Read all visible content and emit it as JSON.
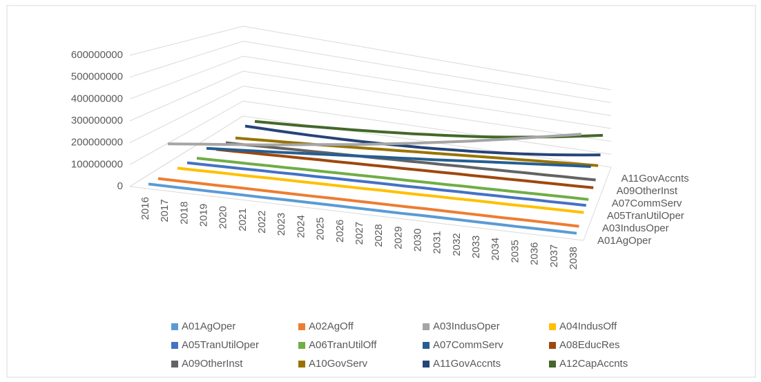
{
  "chart_data": {
    "type": "line3d",
    "categories": [
      "2016",
      "2017",
      "2018",
      "2019",
      "2020",
      "2021",
      "2022",
      "2023",
      "2024",
      "2025",
      "2026",
      "2027",
      "2028",
      "2029",
      "2030",
      "2031",
      "2032",
      "2033",
      "2034",
      "2035",
      "2036",
      "2037",
      "2038"
    ],
    "ylim": [
      0,
      600000000
    ],
    "yticks": [
      0,
      100000000,
      200000000,
      300000000,
      400000000,
      500000000,
      600000000
    ],
    "grid": true,
    "legend": "bottom",
    "series": [
      {
        "name": "A01AgOper",
        "color": "#5b9bd5",
        "values": [
          5000000,
          5000000,
          5000000,
          5000000,
          5000000,
          5000000,
          5000000,
          6000000,
          6000000,
          6000000,
          6000000,
          6000000,
          6000000,
          6000000,
          7000000,
          7000000,
          7000000,
          7000000,
          7000000,
          7000000,
          8000000,
          8000000,
          8000000
        ]
      },
      {
        "name": "A02AgOff",
        "color": "#ed7d31",
        "values": [
          8000000,
          8000000,
          8000000,
          8000000,
          9000000,
          9000000,
          9000000,
          9000000,
          9000000,
          10000000,
          10000000,
          10000000,
          10000000,
          10000000,
          11000000,
          11000000,
          11000000,
          11000000,
          11000000,
          12000000,
          12000000,
          12000000,
          12000000
        ]
      },
      {
        "name": "A03IndusOper",
        "color": "#a5a5a5",
        "values": [
          150000000,
          160000000,
          170000000,
          180000000,
          190000000,
          200000000,
          212000000,
          224000000,
          236000000,
          248000000,
          260000000,
          274000000,
          288000000,
          302000000,
          318000000,
          334000000,
          350000000,
          368000000,
          386000000,
          405000000,
          425000000,
          445000000,
          465000000
        ]
      },
      {
        "name": "A04IndusOff",
        "color": "#ffc000",
        "values": [
          12000000,
          12000000,
          13000000,
          13000000,
          13000000,
          14000000,
          14000000,
          14000000,
          15000000,
          15000000,
          15000000,
          16000000,
          16000000,
          16000000,
          17000000,
          17000000,
          18000000,
          18000000,
          18000000,
          19000000,
          19000000,
          20000000,
          20000000
        ]
      },
      {
        "name": "A05TranUtilOper",
        "color": "#4472c4",
        "values": [
          15000000,
          15000000,
          16000000,
          16000000,
          17000000,
          17000000,
          18000000,
          18000000,
          19000000,
          19000000,
          20000000,
          20000000,
          20000000,
          21000000,
          21000000,
          22000000,
          22000000,
          23000000,
          23000000,
          24000000,
          24000000,
          25000000,
          25000000
        ]
      },
      {
        "name": "A06TranUtilOff",
        "color": "#70ad47",
        "values": [
          14000000,
          14000000,
          15000000,
          15000000,
          16000000,
          16000000,
          17000000,
          17000000,
          18000000,
          18000000,
          19000000,
          19000000,
          19000000,
          20000000,
          20000000,
          21000000,
          21000000,
          22000000,
          22000000,
          23000000,
          23000000,
          24000000,
          24000000
        ]
      },
      {
        "name": "A07CommServ",
        "color": "#255e91",
        "values": [
          40000000,
          45000000,
          50000000,
          55000000,
          60000000,
          66000000,
          72000000,
          78000000,
          84000000,
          90000000,
          96000000,
          102000000,
          108000000,
          114000000,
          121000000,
          128000000,
          135000000,
          142000000,
          149000000,
          156000000,
          163000000,
          170000000,
          177000000
        ]
      },
      {
        "name": "A08EducRes",
        "color": "#9e480e",
        "values": [
          10000000,
          10000000,
          11000000,
          11000000,
          12000000,
          12000000,
          13000000,
          13000000,
          14000000,
          14000000,
          15000000,
          15000000,
          16000000,
          16000000,
          17000000,
          17000000,
          18000000,
          18000000,
          19000000,
          19000000,
          20000000,
          20000000,
          21000000
        ]
      },
      {
        "name": "A09OtherInst",
        "color": "#636363",
        "values": [
          20000000,
          20000000,
          21000000,
          21000000,
          22000000,
          22000000,
          23000000,
          23000000,
          24000000,
          24000000,
          25000000,
          25000000,
          26000000,
          26000000,
          27000000,
          27000000,
          28000000,
          28000000,
          29000000,
          29000000,
          30000000,
          30000000,
          31000000
        ]
      },
      {
        "name": "A10GovServ",
        "color": "#997300",
        "values": [
          20000000,
          22000000,
          24000000,
          26000000,
          28000000,
          30000000,
          33000000,
          36000000,
          39000000,
          42000000,
          45000000,
          48000000,
          51000000,
          54000000,
          57000000,
          60000000,
          63000000,
          66000000,
          69000000,
          72000000,
          75000000,
          78000000,
          81000000
        ]
      },
      {
        "name": "A11GovAccnts",
        "color": "#264478",
        "values": [
          60000000,
          56000000,
          52000000,
          49000000,
          46000000,
          44000000,
          42000000,
          41000000,
          40000000,
          40000000,
          41000000,
          42000000,
          44000000,
          47000000,
          50000000,
          54000000,
          59000000,
          65000000,
          72000000,
          80000000,
          89000000,
          99000000,
          110000000
        ]
      },
      {
        "name": "A12CapAccnts",
        "color": "#43682b",
        "values": [
          60000000,
          61000000,
          62000000,
          63000000,
          65000000,
          67000000,
          69000000,
          72000000,
          75000000,
          79000000,
          83000000,
          88000000,
          93000000,
          99000000,
          106000000,
          114000000,
          123000000,
          133000000,
          144000000,
          156000000,
          169000000,
          183000000,
          198000000
        ]
      }
    ]
  }
}
